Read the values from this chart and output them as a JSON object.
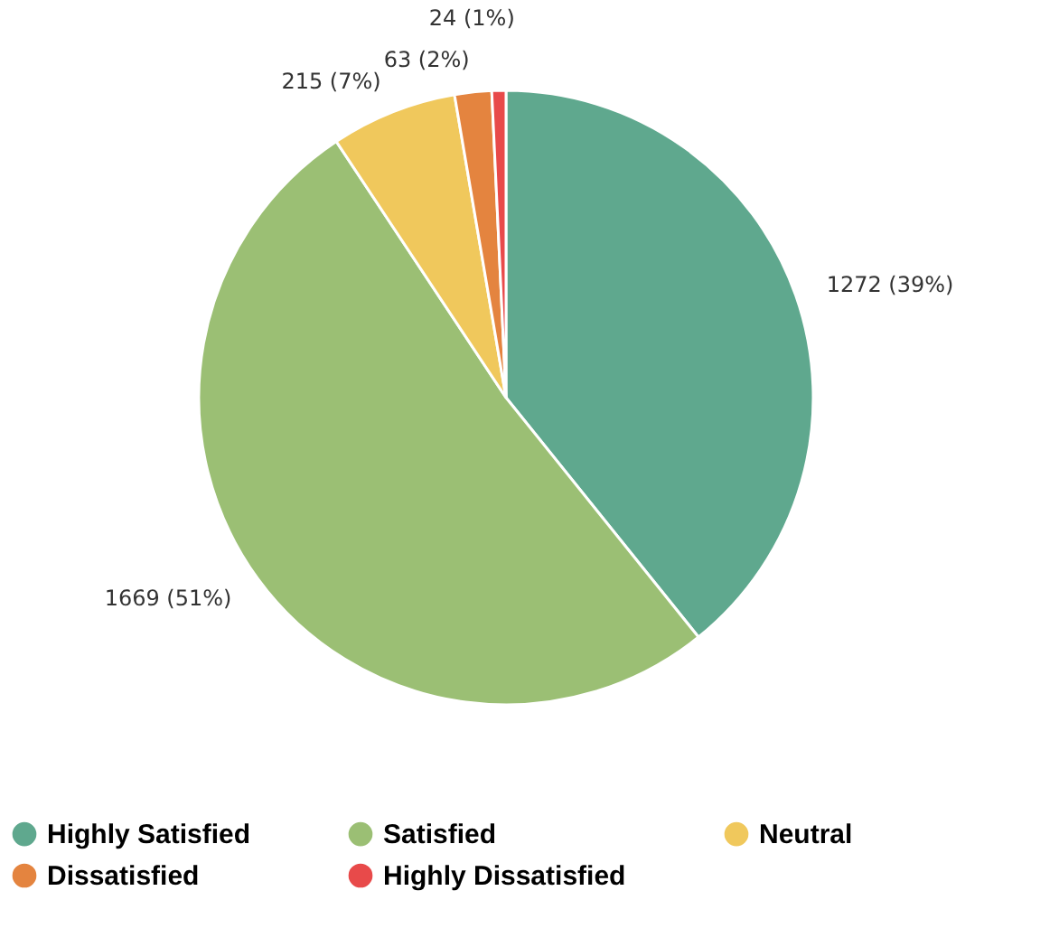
{
  "chart_data": {
    "type": "pie",
    "categories": [
      "Highly Satisfied",
      "Satisfied",
      "Neutral",
      "Dissatisfied",
      "Highly Dissatisfied"
    ],
    "values": [
      1272,
      1669,
      215,
      63,
      24
    ],
    "colors": [
      "#5fa88e",
      "#9bbf74",
      "#f0c85c",
      "#e4843f",
      "#e84a4a"
    ],
    "value_labels": [
      "1272 (39%)",
      "1669 (51%)",
      "215 (7%)",
      "63 (2%)",
      "24 (1%)"
    ],
    "legend": "bottom"
  }
}
